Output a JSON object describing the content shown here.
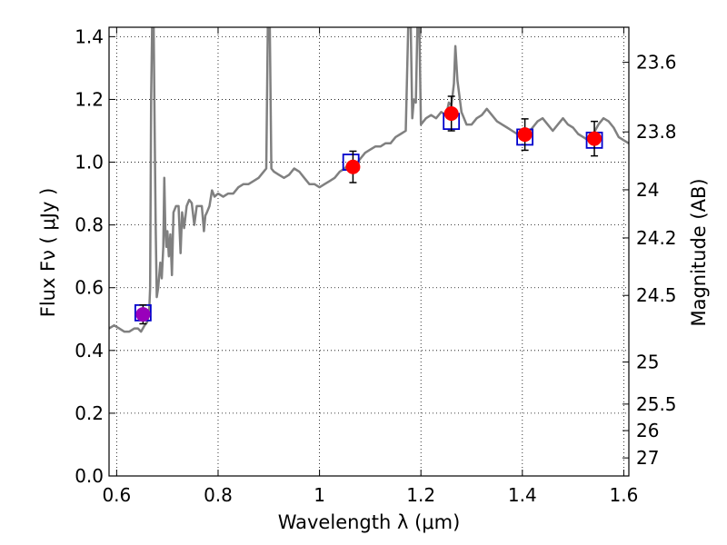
{
  "chart_data": {
    "type": "scatter",
    "xlabel": "Wavelength  λ (μm)",
    "ylabel": "Flux  Fν  ( μJy )",
    "y2label": "Magnitude (AB)",
    "xlim": [
      0.585,
      1.61
    ],
    "ylim": [
      0.0,
      1.43
    ],
    "grid": true,
    "xticks": [
      {
        "value": 0.6,
        "label": "0.6"
      },
      {
        "value": 0.8,
        "label": "0.8"
      },
      {
        "value": 1.0,
        "label": "1"
      },
      {
        "value": 1.2,
        "label": "1.2"
      },
      {
        "value": 1.4,
        "label": "1.4"
      },
      {
        "value": 1.6,
        "label": "1.6"
      }
    ],
    "yticks": [
      {
        "value": 0.0,
        "label": "0.0"
      },
      {
        "value": 0.2,
        "label": "0.2"
      },
      {
        "value": 0.4,
        "label": "0.4"
      },
      {
        "value": 0.6,
        "label": "0.6"
      },
      {
        "value": 0.8,
        "label": "0.8"
      },
      {
        "value": 1.0,
        "label": "1.0"
      },
      {
        "value": 1.2,
        "label": "1.2"
      },
      {
        "value": 1.4,
        "label": "1.4"
      }
    ],
    "y2ticks": [
      {
        "value": 23.6,
        "label": "23.6"
      },
      {
        "value": 23.8,
        "label": "23.8"
      },
      {
        "value": 24.0,
        "label": "24"
      },
      {
        "value": 24.2,
        "label": "24.2"
      },
      {
        "value": 24.5,
        "label": "24.5"
      },
      {
        "value": 25.0,
        "label": "25"
      },
      {
        "value": 25.5,
        "label": "25.5"
      },
      {
        "value": 26.0,
        "label": "26"
      },
      {
        "value": 27.0,
        "label": "27"
      }
    ],
    "series": [
      {
        "kind": "line",
        "color": "#808080",
        "points": [
          [
            0.585,
            0.47
          ],
          [
            0.595,
            0.48
          ],
          [
            0.605,
            0.47
          ],
          [
            0.615,
            0.46
          ],
          [
            0.625,
            0.46
          ],
          [
            0.635,
            0.47
          ],
          [
            0.642,
            0.47
          ],
          [
            0.648,
            0.46
          ],
          [
            0.655,
            0.48
          ],
          [
            0.66,
            0.49
          ],
          [
            0.664,
            0.52
          ],
          [
            0.666,
            0.6
          ],
          [
            0.668,
            1.2
          ],
          [
            0.67,
            1.43
          ],
          [
            0.673,
            1.43
          ],
          [
            0.675,
            1.1
          ],
          [
            0.677,
            0.8
          ],
          [
            0.679,
            0.57
          ],
          [
            0.682,
            0.6
          ],
          [
            0.686,
            0.68
          ],
          [
            0.689,
            0.63
          ],
          [
            0.692,
            0.73
          ],
          [
            0.694,
            0.95
          ],
          [
            0.696,
            0.79
          ],
          [
            0.698,
            0.73
          ],
          [
            0.7,
            0.78
          ],
          [
            0.703,
            0.7
          ],
          [
            0.706,
            0.77
          ],
          [
            0.709,
            0.64
          ],
          [
            0.712,
            0.84
          ],
          [
            0.717,
            0.86
          ],
          [
            0.722,
            0.86
          ],
          [
            0.726,
            0.71
          ],
          [
            0.729,
            0.84
          ],
          [
            0.733,
            0.79
          ],
          [
            0.738,
            0.86
          ],
          [
            0.743,
            0.88
          ],
          [
            0.748,
            0.87
          ],
          [
            0.753,
            0.8
          ],
          [
            0.758,
            0.86
          ],
          [
            0.763,
            0.86
          ],
          [
            0.768,
            0.86
          ],
          [
            0.772,
            0.78
          ],
          [
            0.775,
            0.83
          ],
          [
            0.778,
            0.84
          ],
          [
            0.783,
            0.86
          ],
          [
            0.788,
            0.91
          ],
          [
            0.793,
            0.89
          ],
          [
            0.8,
            0.9
          ],
          [
            0.81,
            0.89
          ],
          [
            0.82,
            0.9
          ],
          [
            0.83,
            0.9
          ],
          [
            0.84,
            0.92
          ],
          [
            0.85,
            0.93
          ],
          [
            0.86,
            0.93
          ],
          [
            0.87,
            0.94
          ],
          [
            0.88,
            0.95
          ],
          [
            0.89,
            0.97
          ],
          [
            0.895,
            0.98
          ],
          [
            0.898,
            1.43
          ],
          [
            0.902,
            1.43
          ],
          [
            0.905,
            0.98
          ],
          [
            0.91,
            0.97
          ],
          [
            0.92,
            0.96
          ],
          [
            0.93,
            0.95
          ],
          [
            0.94,
            0.96
          ],
          [
            0.95,
            0.98
          ],
          [
            0.96,
            0.97
          ],
          [
            0.97,
            0.95
          ],
          [
            0.98,
            0.93
          ],
          [
            0.99,
            0.93
          ],
          [
            1.0,
            0.92
          ],
          [
            1.01,
            0.93
          ],
          [
            1.02,
            0.94
          ],
          [
            1.03,
            0.95
          ],
          [
            1.04,
            0.97
          ],
          [
            1.05,
            0.98
          ],
          [
            1.06,
            1.0
          ],
          [
            1.07,
            0.99
          ],
          [
            1.08,
            1.01
          ],
          [
            1.09,
            1.03
          ],
          [
            1.1,
            1.04
          ],
          [
            1.11,
            1.05
          ],
          [
            1.12,
            1.05
          ],
          [
            1.13,
            1.06
          ],
          [
            1.14,
            1.06
          ],
          [
            1.15,
            1.08
          ],
          [
            1.16,
            1.09
          ],
          [
            1.17,
            1.1
          ],
          [
            1.175,
            1.43
          ],
          [
            1.18,
            1.43
          ],
          [
            1.183,
            1.14
          ],
          [
            1.186,
            1.2
          ],
          [
            1.19,
            1.19
          ],
          [
            1.193,
            1.43
          ],
          [
            1.197,
            1.43
          ],
          [
            1.2,
            1.12
          ],
          [
            1.21,
            1.14
          ],
          [
            1.22,
            1.15
          ],
          [
            1.23,
            1.14
          ],
          [
            1.24,
            1.16
          ],
          [
            1.25,
            1.15
          ],
          [
            1.255,
            1.19
          ],
          [
            1.26,
            1.18
          ],
          [
            1.265,
            1.25
          ],
          [
            1.268,
            1.37
          ],
          [
            1.272,
            1.26
          ],
          [
            1.28,
            1.16
          ],
          [
            1.29,
            1.12
          ],
          [
            1.3,
            1.12
          ],
          [
            1.31,
            1.14
          ],
          [
            1.32,
            1.15
          ],
          [
            1.33,
            1.17
          ],
          [
            1.34,
            1.15
          ],
          [
            1.35,
            1.13
          ],
          [
            1.36,
            1.12
          ],
          [
            1.37,
            1.11
          ],
          [
            1.38,
            1.1
          ],
          [
            1.39,
            1.09
          ],
          [
            1.4,
            1.08
          ],
          [
            1.41,
            1.09
          ],
          [
            1.42,
            1.11
          ],
          [
            1.43,
            1.13
          ],
          [
            1.44,
            1.14
          ],
          [
            1.45,
            1.12
          ],
          [
            1.46,
            1.1
          ],
          [
            1.47,
            1.12
          ],
          [
            1.48,
            1.14
          ],
          [
            1.49,
            1.12
          ],
          [
            1.5,
            1.11
          ],
          [
            1.51,
            1.09
          ],
          [
            1.52,
            1.08
          ],
          [
            1.53,
            1.07
          ],
          [
            1.54,
            1.09
          ],
          [
            1.55,
            1.12
          ],
          [
            1.56,
            1.14
          ],
          [
            1.57,
            1.13
          ],
          [
            1.58,
            1.11
          ],
          [
            1.59,
            1.08
          ],
          [
            1.6,
            1.07
          ],
          [
            1.61,
            1.06
          ]
        ]
      },
      {
        "kind": "model-squares",
        "color": "#0000cc",
        "points": [
          [
            0.652,
            0.52
          ],
          [
            1.062,
            1.0
          ],
          [
            1.26,
            1.13
          ],
          [
            1.405,
            1.08
          ],
          [
            1.542,
            1.07
          ]
        ]
      },
      {
        "kind": "observed-points",
        "points": [
          {
            "x": 0.652,
            "y": 0.515,
            "err": 0.03,
            "color": "#9900bb"
          },
          {
            "x": 1.066,
            "y": 0.985,
            "err": 0.05,
            "color": "#ff0000"
          },
          {
            "x": 1.26,
            "y": 1.155,
            "err": 0.055,
            "color": "#ff0000"
          },
          {
            "x": 1.405,
            "y": 1.088,
            "err": 0.05,
            "color": "#ff0000"
          },
          {
            "x": 1.542,
            "y": 1.075,
            "err": 0.055,
            "color": "#ff0000"
          }
        ]
      }
    ]
  }
}
